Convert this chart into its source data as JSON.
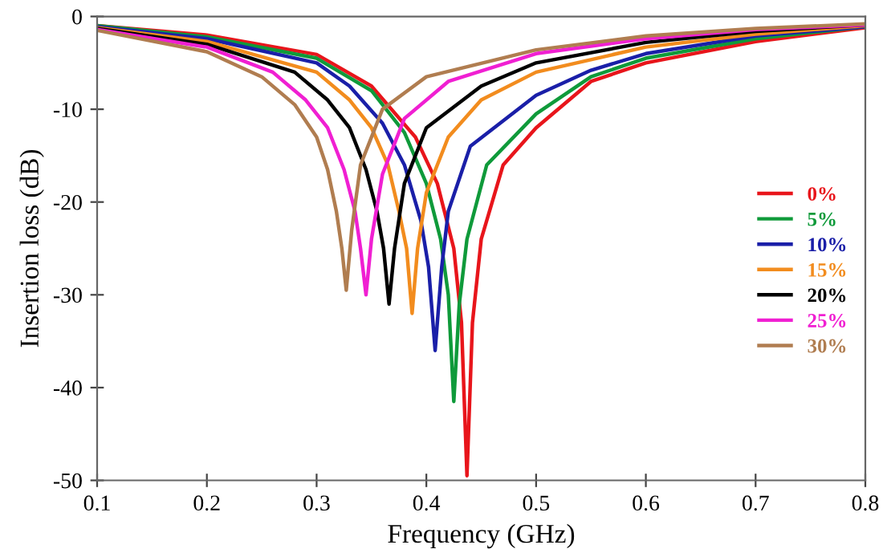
{
  "chart_data": {
    "type": "line",
    "xlabel": "Frequency (GHz)",
    "ylabel": "Insertion loss (dB)",
    "xlim": [
      0.1,
      0.8
    ],
    "ylim": [
      -50,
      0
    ],
    "xticks": [
      {
        "value": 0.1,
        "label": "0.1"
      },
      {
        "value": 0.2,
        "label": "0.2"
      },
      {
        "value": 0.3,
        "label": "0.3"
      },
      {
        "value": 0.4,
        "label": "0.4"
      },
      {
        "value": 0.5,
        "label": "0.5"
      },
      {
        "value": 0.6,
        "label": "0.6"
      },
      {
        "value": 0.7,
        "label": "0.7"
      },
      {
        "value": 0.8,
        "label": "0.8"
      }
    ],
    "yticks": [
      0,
      -10,
      -20,
      -30,
      -40,
      -50
    ],
    "grid": false,
    "legend": "right",
    "marker": "none",
    "line_style": "solid",
    "series": [
      {
        "name": "0%",
        "color": "#e8151b",
        "x": [
          0.1,
          0.2,
          0.3,
          0.35,
          0.39,
          0.41,
          0.425,
          0.432,
          0.437,
          0.442,
          0.45,
          0.47,
          0.5,
          0.55,
          0.6,
          0.7,
          0.8
        ],
        "values": [
          -1.0,
          -2.0,
          -4.1,
          -7.5,
          -13,
          -18,
          -25,
          -33,
          -49.5,
          -33,
          -24,
          -16,
          -12,
          -7,
          -5,
          -2.7,
          -1.2
        ]
      },
      {
        "name": "5%",
        "color": "#0f9a3a",
        "x": [
          0.1,
          0.2,
          0.3,
          0.35,
          0.38,
          0.4,
          0.413,
          0.42,
          0.425,
          0.43,
          0.437,
          0.455,
          0.5,
          0.55,
          0.6,
          0.7,
          0.8
        ],
        "values": [
          -1.0,
          -2.2,
          -4.5,
          -8,
          -12.5,
          -18,
          -24,
          -30,
          -41.5,
          -31,
          -24,
          -16,
          -10.5,
          -6.5,
          -4.5,
          -2.4,
          -1.1
        ]
      },
      {
        "name": "10%",
        "color": "#1a1fa8",
        "x": [
          0.1,
          0.2,
          0.3,
          0.33,
          0.36,
          0.38,
          0.395,
          0.402,
          0.408,
          0.414,
          0.42,
          0.44,
          0.5,
          0.55,
          0.6,
          0.7,
          0.8
        ],
        "values": [
          -1.1,
          -2.4,
          -5,
          -7.5,
          -11.5,
          -16,
          -22,
          -27,
          -36,
          -27,
          -21,
          -14,
          -8.5,
          -5.8,
          -4,
          -2.1,
          -1.1
        ]
      },
      {
        "name": "15%",
        "color": "#f28c1e",
        "x": [
          0.1,
          0.2,
          0.3,
          0.33,
          0.35,
          0.365,
          0.375,
          0.382,
          0.387,
          0.392,
          0.4,
          0.42,
          0.45,
          0.5,
          0.6,
          0.7,
          0.8
        ],
        "values": [
          -1.2,
          -2.7,
          -6,
          -9,
          -12,
          -16,
          -21,
          -25,
          -32,
          -25,
          -19,
          -13,
          -9,
          -6,
          -3.3,
          -1.9,
          -1.0
        ]
      },
      {
        "name": "20%",
        "color": "#000000",
        "x": [
          0.1,
          0.2,
          0.28,
          0.31,
          0.33,
          0.345,
          0.355,
          0.361,
          0.366,
          0.371,
          0.38,
          0.4,
          0.45,
          0.5,
          0.6,
          0.7,
          0.8
        ],
        "values": [
          -1.3,
          -3,
          -6,
          -9,
          -12,
          -16.5,
          -21,
          -25,
          -31,
          -25,
          -18,
          -12,
          -7.5,
          -5,
          -2.8,
          -1.6,
          -0.9
        ]
      },
      {
        "name": "25%",
        "color": "#f01fd2",
        "x": [
          0.1,
          0.2,
          0.26,
          0.29,
          0.31,
          0.325,
          0.335,
          0.34,
          0.345,
          0.35,
          0.36,
          0.38,
          0.42,
          0.5,
          0.6,
          0.7,
          0.8
        ],
        "values": [
          -1.4,
          -3.3,
          -6,
          -9,
          -12,
          -16.5,
          -21,
          -25,
          -30,
          -24,
          -17,
          -11,
          -7,
          -4,
          -2.4,
          -1.4,
          -0.9
        ]
      },
      {
        "name": "30%",
        "color": "#b07d50",
        "x": [
          0.1,
          0.2,
          0.25,
          0.28,
          0.3,
          0.31,
          0.318,
          0.323,
          0.327,
          0.332,
          0.34,
          0.36,
          0.4,
          0.5,
          0.6,
          0.7,
          0.8
        ],
        "values": [
          -1.5,
          -3.8,
          -6.5,
          -9.5,
          -13,
          -16.5,
          -21,
          -25,
          -29.5,
          -23,
          -16,
          -10,
          -6.5,
          -3.6,
          -2.1,
          -1.3,
          -0.8
        ]
      }
    ]
  }
}
